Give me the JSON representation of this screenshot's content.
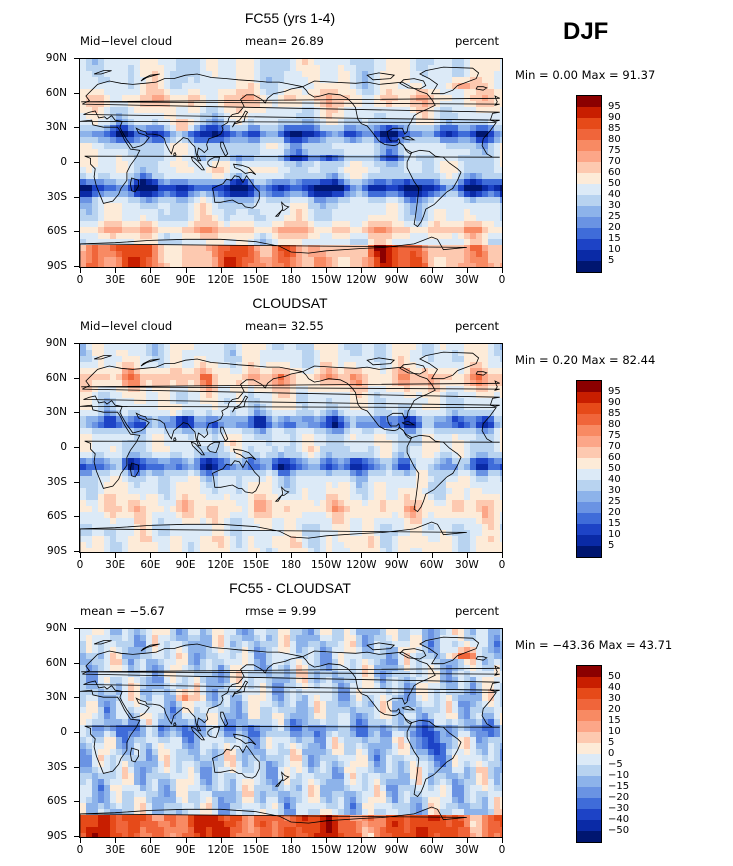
{
  "season_label": "DJF",
  "panels": [
    {
      "title": "FC55 (yrs 1-4)",
      "left_label": "Mid−level cloud",
      "center_label": "mean=  26.89",
      "right_label": "percent",
      "stats": "Min =   0.00 Max =  91.37",
      "field_type": "model_cloud",
      "colorbar": {
        "labels": [
          "95",
          "90",
          "85",
          "80",
          "75",
          "70",
          "60",
          "50",
          "40",
          "30",
          "25",
          "20",
          "15",
          "10",
          "5"
        ],
        "colors": [
          "#8b0000",
          "#c81e00",
          "#e64a19",
          "#f0653a",
          "#f88a63",
          "#fca688",
          "#fdc9b0",
          "#fdebd8",
          "#dceaf7",
          "#b8d3f0",
          "#8db3ea",
          "#6a93e3",
          "#3f6cd9",
          "#1d43c6",
          "#0a2aa6",
          "#001670"
        ]
      }
    },
    {
      "title": "CLOUDSAT",
      "left_label": "Mid−level cloud",
      "center_label": "mean=  32.55",
      "right_label": "percent",
      "stats": "Min =   0.20 Max =  82.44",
      "field_type": "obs_cloud",
      "colorbar": {
        "labels": [
          "95",
          "90",
          "85",
          "80",
          "75",
          "70",
          "60",
          "50",
          "40",
          "30",
          "25",
          "20",
          "15",
          "10",
          "5"
        ],
        "colors": [
          "#8b0000",
          "#c81e00",
          "#e64a19",
          "#f0653a",
          "#f88a63",
          "#fca688",
          "#fdc9b0",
          "#fdebd8",
          "#dceaf7",
          "#b8d3f0",
          "#8db3ea",
          "#6a93e3",
          "#3f6cd9",
          "#1d43c6",
          "#0a2aa6",
          "#001670"
        ]
      }
    },
    {
      "title": "FC55 - CLOUDSAT",
      "left_label": "mean =  −5.67",
      "center_label": "rmse =   9.99",
      "right_label": "percent",
      "stats": "Min = −43.36 Max =  43.71",
      "field_type": "difference",
      "colorbar": {
        "labels": [
          "50",
          "40",
          "30",
          "20",
          "15",
          "10",
          "5",
          "0",
          "−5",
          "−10",
          "−15",
          "−20",
          "−30",
          "−40",
          "−50"
        ],
        "colors": [
          "#8b0000",
          "#c81e00",
          "#e64a19",
          "#f0653a",
          "#f88a63",
          "#fca688",
          "#fdc9b0",
          "#fdebd8",
          "#dceaf7",
          "#b8d3f0",
          "#8db3ea",
          "#6a93e3",
          "#3f6cd9",
          "#1d43c6",
          "#0a2aa6",
          "#001670"
        ]
      }
    }
  ],
  "lat_labels": [
    "90N",
    "60N",
    "30N",
    "0",
    "30S",
    "60S",
    "90S"
  ],
  "lon_labels": [
    "0",
    "30E",
    "60E",
    "90E",
    "120E",
    "150E",
    "180",
    "150W",
    "120W",
    "90W",
    "60W",
    "30W",
    "0"
  ],
  "colors": {
    "coastline": "#000000",
    "background": "#ffffff"
  }
}
